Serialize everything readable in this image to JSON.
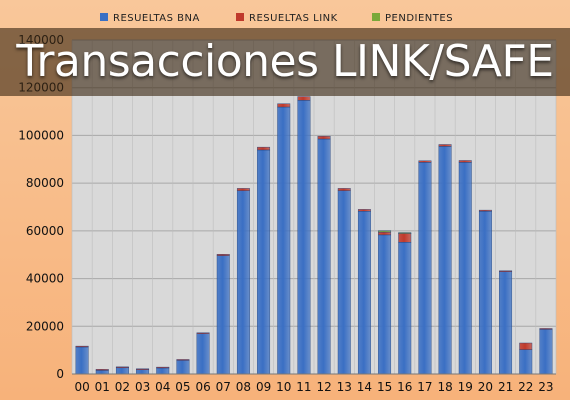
{
  "title": "Transacciones LINK/SAFE",
  "chart_data": {
    "type": "bar",
    "stacked": true,
    "categories": [
      "00",
      "01",
      "02",
      "03",
      "04",
      "05",
      "06",
      "07",
      "08",
      "09",
      "10",
      "11",
      "12",
      "13",
      "14",
      "15",
      "16",
      "17",
      "18",
      "19",
      "20",
      "21",
      "22",
      "23"
    ],
    "series": [
      {
        "name": "RESUELTAS BNA",
        "color": "#3a6fc4",
        "values": [
          11500,
          1500,
          2800,
          2000,
          2700,
          5900,
          16900,
          49600,
          76800,
          93900,
          111900,
          114700,
          98500,
          76800,
          68200,
          58300,
          55200,
          88700,
          95400,
          88700,
          68200,
          43000,
          10200,
          18800
        ]
      },
      {
        "name": "RESUELTAS LINK",
        "color": "#c0392b",
        "values": [
          200,
          500,
          200,
          200,
          200,
          200,
          400,
          600,
          1000,
          1200,
          1400,
          1600,
          1200,
          1000,
          800,
          1200,
          3800,
          700,
          800,
          800,
          500,
          300,
          2800,
          300
        ]
      },
      {
        "name": "PENDIENTES",
        "color": "#7aa83a",
        "values": [
          0,
          0,
          0,
          0,
          0,
          0,
          0,
          0,
          0,
          0,
          0,
          0,
          0,
          0,
          0,
          600,
          300,
          0,
          0,
          0,
          0,
          0,
          0,
          0
        ]
      }
    ],
    "ylim": [
      0,
      140000
    ],
    "yticks": [
      0,
      20000,
      40000,
      60000,
      80000,
      100000,
      120000,
      140000
    ],
    "grid": true,
    "legend": "top"
  }
}
